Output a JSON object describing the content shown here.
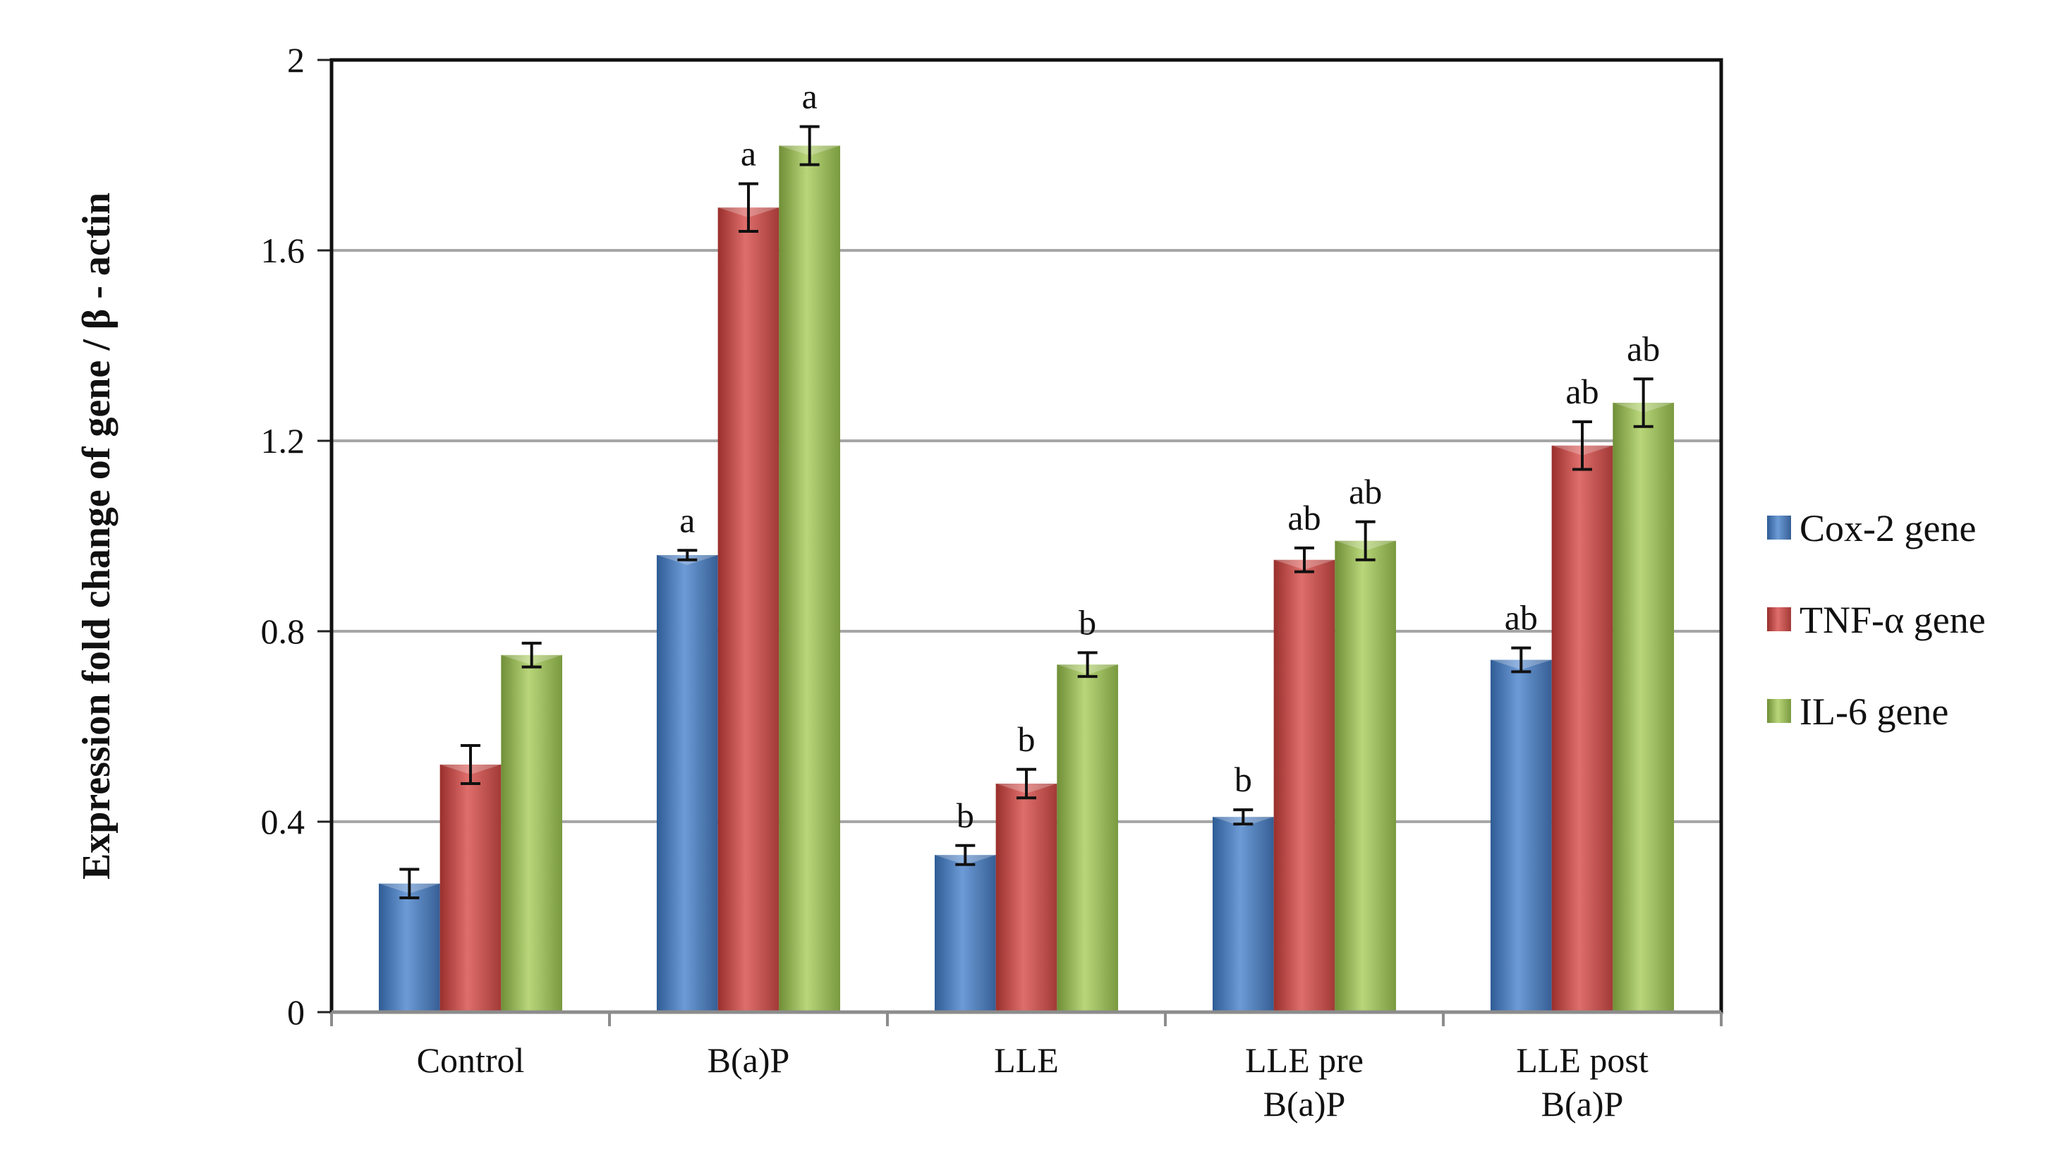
{
  "chart_data": {
    "type": "bar",
    "title": "",
    "xlabel": "",
    "ylabel": "Expression fold change of gene / β - actin",
    "ylim": [
      0,
      2
    ],
    "yticks": [
      0,
      0.4,
      0.8,
      1.2,
      1.6,
      2
    ],
    "ytick_labels": [
      "0",
      "0.4",
      "0.8",
      "1.2",
      "1.6",
      "2"
    ],
    "grid": true,
    "legend_position": "right",
    "categories": [
      {
        "lines": [
          "Control"
        ]
      },
      {
        "lines": [
          "B(a)P"
        ]
      },
      {
        "lines": [
          "LLE"
        ]
      },
      {
        "lines": [
          "LLE pre",
          "B(a)P"
        ]
      },
      {
        "lines": [
          "LLE post",
          "B(a)P"
        ]
      }
    ],
    "series": [
      {
        "name": "Cox-2 gene",
        "color": "#4a7ebb",
        "values": [
          0.27,
          0.96,
          0.33,
          0.41,
          0.74
        ],
        "errors": [
          0.03,
          0.01,
          0.02,
          0.015,
          0.025
        ],
        "labels": [
          "",
          "a",
          "b",
          "b",
          "ab"
        ]
      },
      {
        "name": "TNF-α gene",
        "color": "#c0504d",
        "values": [
          0.52,
          1.69,
          0.48,
          0.95,
          1.19
        ],
        "errors": [
          0.04,
          0.05,
          0.03,
          0.025,
          0.05
        ],
        "labels": [
          "",
          "a",
          "b",
          "ab",
          "ab"
        ]
      },
      {
        "name": "IL-6 gene",
        "color": "#9bbb59",
        "values": [
          0.75,
          1.82,
          0.73,
          0.99,
          1.28
        ],
        "errors": [
          0.025,
          0.04,
          0.025,
          0.04,
          0.05
        ],
        "labels": [
          "",
          "a",
          "b",
          "ab",
          "ab"
        ]
      }
    ]
  }
}
